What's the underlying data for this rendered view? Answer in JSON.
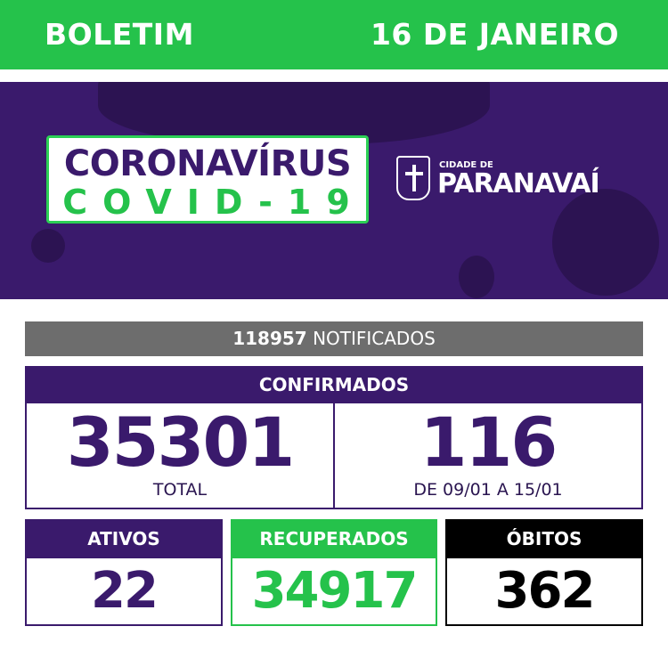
{
  "header": {
    "left": "BOLETIM",
    "right": "16 DE JANEIRO"
  },
  "banner": {
    "title_line1": "CORONAVÍRUS",
    "title_line2": "COVID-19",
    "city_prefix": "CIDADE DE",
    "city_name": "PARANAVAÍ"
  },
  "notificados": {
    "value": "118957",
    "label": "NOTIFICADOS"
  },
  "confirmados": {
    "title": "CONFIRMADOS",
    "total": "35301",
    "total_label": "TOTAL",
    "week": "116",
    "week_label": "DE 09/01 A 15/01"
  },
  "ativos": {
    "title": "ATIVOS",
    "value": "22"
  },
  "recuperados": {
    "title": "RECUPERADOS",
    "value": "34917"
  },
  "obitos": {
    "title": "ÓBITOS",
    "value": "362"
  },
  "colors": {
    "green": "#25c24b",
    "purple": "#3a1a6c",
    "grey": "#6d6d6d",
    "black": "#000000"
  }
}
